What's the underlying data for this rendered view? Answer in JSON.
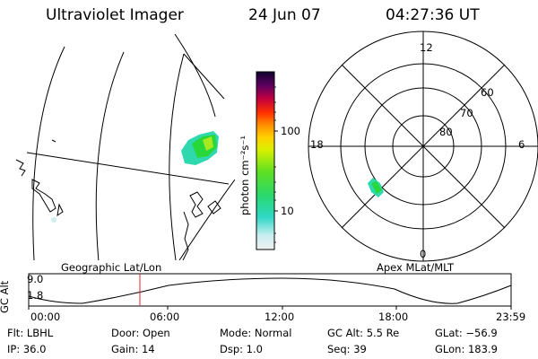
{
  "header": {
    "title": "Ultraviolet Imager",
    "date": "24 Jun 07",
    "time": "04:27:36 UT"
  },
  "colorbar": {
    "unit_label": "photon cm⁻²s⁻¹",
    "ticks": [
      "100",
      "10"
    ]
  },
  "polar": {
    "mlt_labels": {
      "top": "12",
      "left": "18",
      "right": "6",
      "bottom": "0"
    },
    "lat_labels": [
      "60",
      "70",
      "80"
    ]
  },
  "altitude_panel": {
    "left_title": "Geographic Lat/Lon",
    "right_title": "Apex MLat/MLT",
    "ylabel": "GC Alt",
    "yticks": [
      "9.0",
      "1.8"
    ],
    "xticks": [
      "00:00",
      "06:00",
      "12:00",
      "18:00",
      "23:59"
    ],
    "marker_time": "04:27:36"
  },
  "info": {
    "flt": "Flt: LBHL",
    "ip": "IP: 36.0",
    "door": "Door: Open",
    "gain": "Gain: 14",
    "mode": "Mode: Normal",
    "dsp": "Dsp:    1.0",
    "gcalt": "GC Alt: 5.5 Re",
    "seq": "Seq: 39",
    "glat": "GLat: −56.9",
    "glon": "GLon: 183.9"
  },
  "colors": {
    "marker": "#e02030",
    "aurora_core": "#28d83a",
    "aurora_edge": "#30d8b0"
  }
}
